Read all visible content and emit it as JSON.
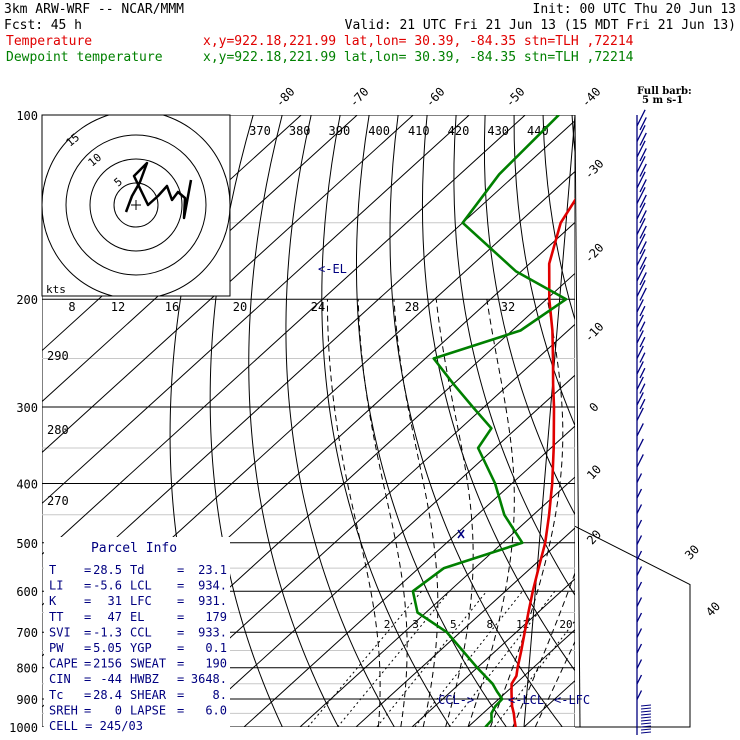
{
  "header": {
    "model": "3km ARW-WRF -- NCAR/MMM",
    "init": "Init: 00 UTC Thu 20 Jun 13",
    "fcst_label": "Fcst:",
    "fcst_value": "45 h",
    "valid": "Valid: 21 UTC Fri 21 Jun 13 (15 MDT Fri 21 Jun 13)",
    "temp_label": "Temperature",
    "temp_info": "x,y=922.18,221.99   lat,lon= 30.39, -84.35   stn=TLH ,72214",
    "dew_label": "Dewpoint temperature",
    "dew_info": "x,y=922.18,221.99   lat,lon= 30.39, -84.35   stn=TLH ,72214",
    "full_barb": "Full barb:",
    "full_barb_unit": "5 m s-1"
  },
  "colors": {
    "temperature": "#e00000",
    "dewpoint": "#008000",
    "annotation": "#000080",
    "grid": "#000000"
  },
  "chart_data": {
    "type": "line",
    "y_scale": "log-pressure",
    "ylabel": "",
    "xlabel": "",
    "pressure_ticks": [
      "100",
      "200",
      "300",
      "400",
      "500",
      "600",
      "700",
      "800",
      "900",
      "1000"
    ],
    "top_temperature_labels": [
      "-80",
      "-70",
      "-60",
      "-50",
      "-40"
    ],
    "right_temperature_labels": [
      "-30",
      "-20",
      "-10",
      "0",
      "10",
      "20",
      "30",
      "40"
    ],
    "theta_labels": [
      "370",
      "380",
      "390",
      "400",
      "410",
      "420",
      "430",
      "440"
    ],
    "theta_side_labels": [
      "290",
      "280",
      "270"
    ],
    "mixing_ratio_labels": [
      "2",
      "3",
      "5",
      "8",
      "12",
      "20"
    ],
    "hodograph": {
      "unit": "kts",
      "ring_labels": [
        "5",
        "10",
        "15"
      ],
      "speed_labels": [
        "8",
        "12",
        "16",
        "20",
        "24",
        "28",
        "32"
      ]
    },
    "series": [
      {
        "name": "Temperature",
        "points": [
          [
            1000,
            28.5
          ],
          [
            975,
            27
          ],
          [
            950,
            25.5
          ],
          [
            925,
            23.8
          ],
          [
            900,
            22.3
          ],
          [
            875,
            20.8
          ],
          [
            850,
            19.3
          ],
          [
            825,
            18.6
          ],
          [
            800,
            17.2
          ],
          [
            750,
            14.5
          ],
          [
            700,
            11.5
          ],
          [
            650,
            8.3
          ],
          [
            600,
            4.9
          ],
          [
            550,
            1.4
          ],
          [
            500,
            -2.4
          ],
          [
            450,
            -7.2
          ],
          [
            400,
            -12.8
          ],
          [
            350,
            -19.5
          ],
          [
            300,
            -27.5
          ],
          [
            275,
            -32.2
          ],
          [
            250,
            -37.2
          ],
          [
            225,
            -42.8
          ],
          [
            200,
            -49.5
          ],
          [
            175,
            -56.5
          ],
          [
            150,
            -62.5
          ],
          [
            125,
            -66.5
          ],
          [
            110,
            -67.5
          ],
          [
            100,
            -67.5
          ]
        ]
      },
      {
        "name": "Dewpoint temperature",
        "points": [
          [
            1000,
            23.1
          ],
          [
            975,
            22.9
          ],
          [
            950,
            21.5
          ],
          [
            925,
            20.8
          ],
          [
            900,
            20.6
          ],
          [
            875,
            18.2
          ],
          [
            850,
            15.9
          ],
          [
            825,
            13
          ],
          [
            800,
            10
          ],
          [
            750,
            4
          ],
          [
            700,
            -2.4
          ],
          [
            650,
            -11.5
          ],
          [
            600,
            -16.5
          ],
          [
            550,
            -15.5
          ],
          [
            500,
            -6.5
          ],
          [
            450,
            -15.2
          ],
          [
            400,
            -23
          ],
          [
            350,
            -33
          ],
          [
            325,
            -34.5
          ],
          [
            300,
            -42
          ],
          [
            275,
            -50
          ],
          [
            250,
            -58.5
          ],
          [
            225,
            -48.5
          ],
          [
            200,
            -46.5
          ],
          [
            180,
            -61
          ],
          [
            150,
            -80
          ],
          [
            125,
            -83
          ],
          [
            100,
            -84
          ]
        ]
      }
    ],
    "levels": {
      "el": "<-EL",
      "ccl": "CCL->",
      "lcl": "<-LCL",
      "lfc": "<-LFC"
    },
    "parcel_info": {
      "title": "Parcel Info",
      "rows": [
        [
          "T",
          "28.5",
          "Td",
          "23.1"
        ],
        [
          "LI",
          "-5.6",
          "LCL",
          "934."
        ],
        [
          "K",
          "31",
          "LFC",
          "931."
        ],
        [
          "TT",
          "47",
          "EL",
          "179"
        ],
        [
          "SVI",
          "-1.3",
          "CCL",
          "933."
        ],
        [
          "PW",
          "5.05",
          "YGP",
          "0.1"
        ],
        [
          "CAPE",
          "2156",
          "SWEAT",
          "190"
        ],
        [
          "CIN",
          "-44",
          "HWBZ",
          "3648."
        ],
        [
          "Tc",
          "28.4",
          "SHEAR",
          "8."
        ],
        [
          "SREH",
          "0",
          "LAPSE",
          "6.0"
        ]
      ],
      "cell": "CELL = 245/03"
    }
  }
}
